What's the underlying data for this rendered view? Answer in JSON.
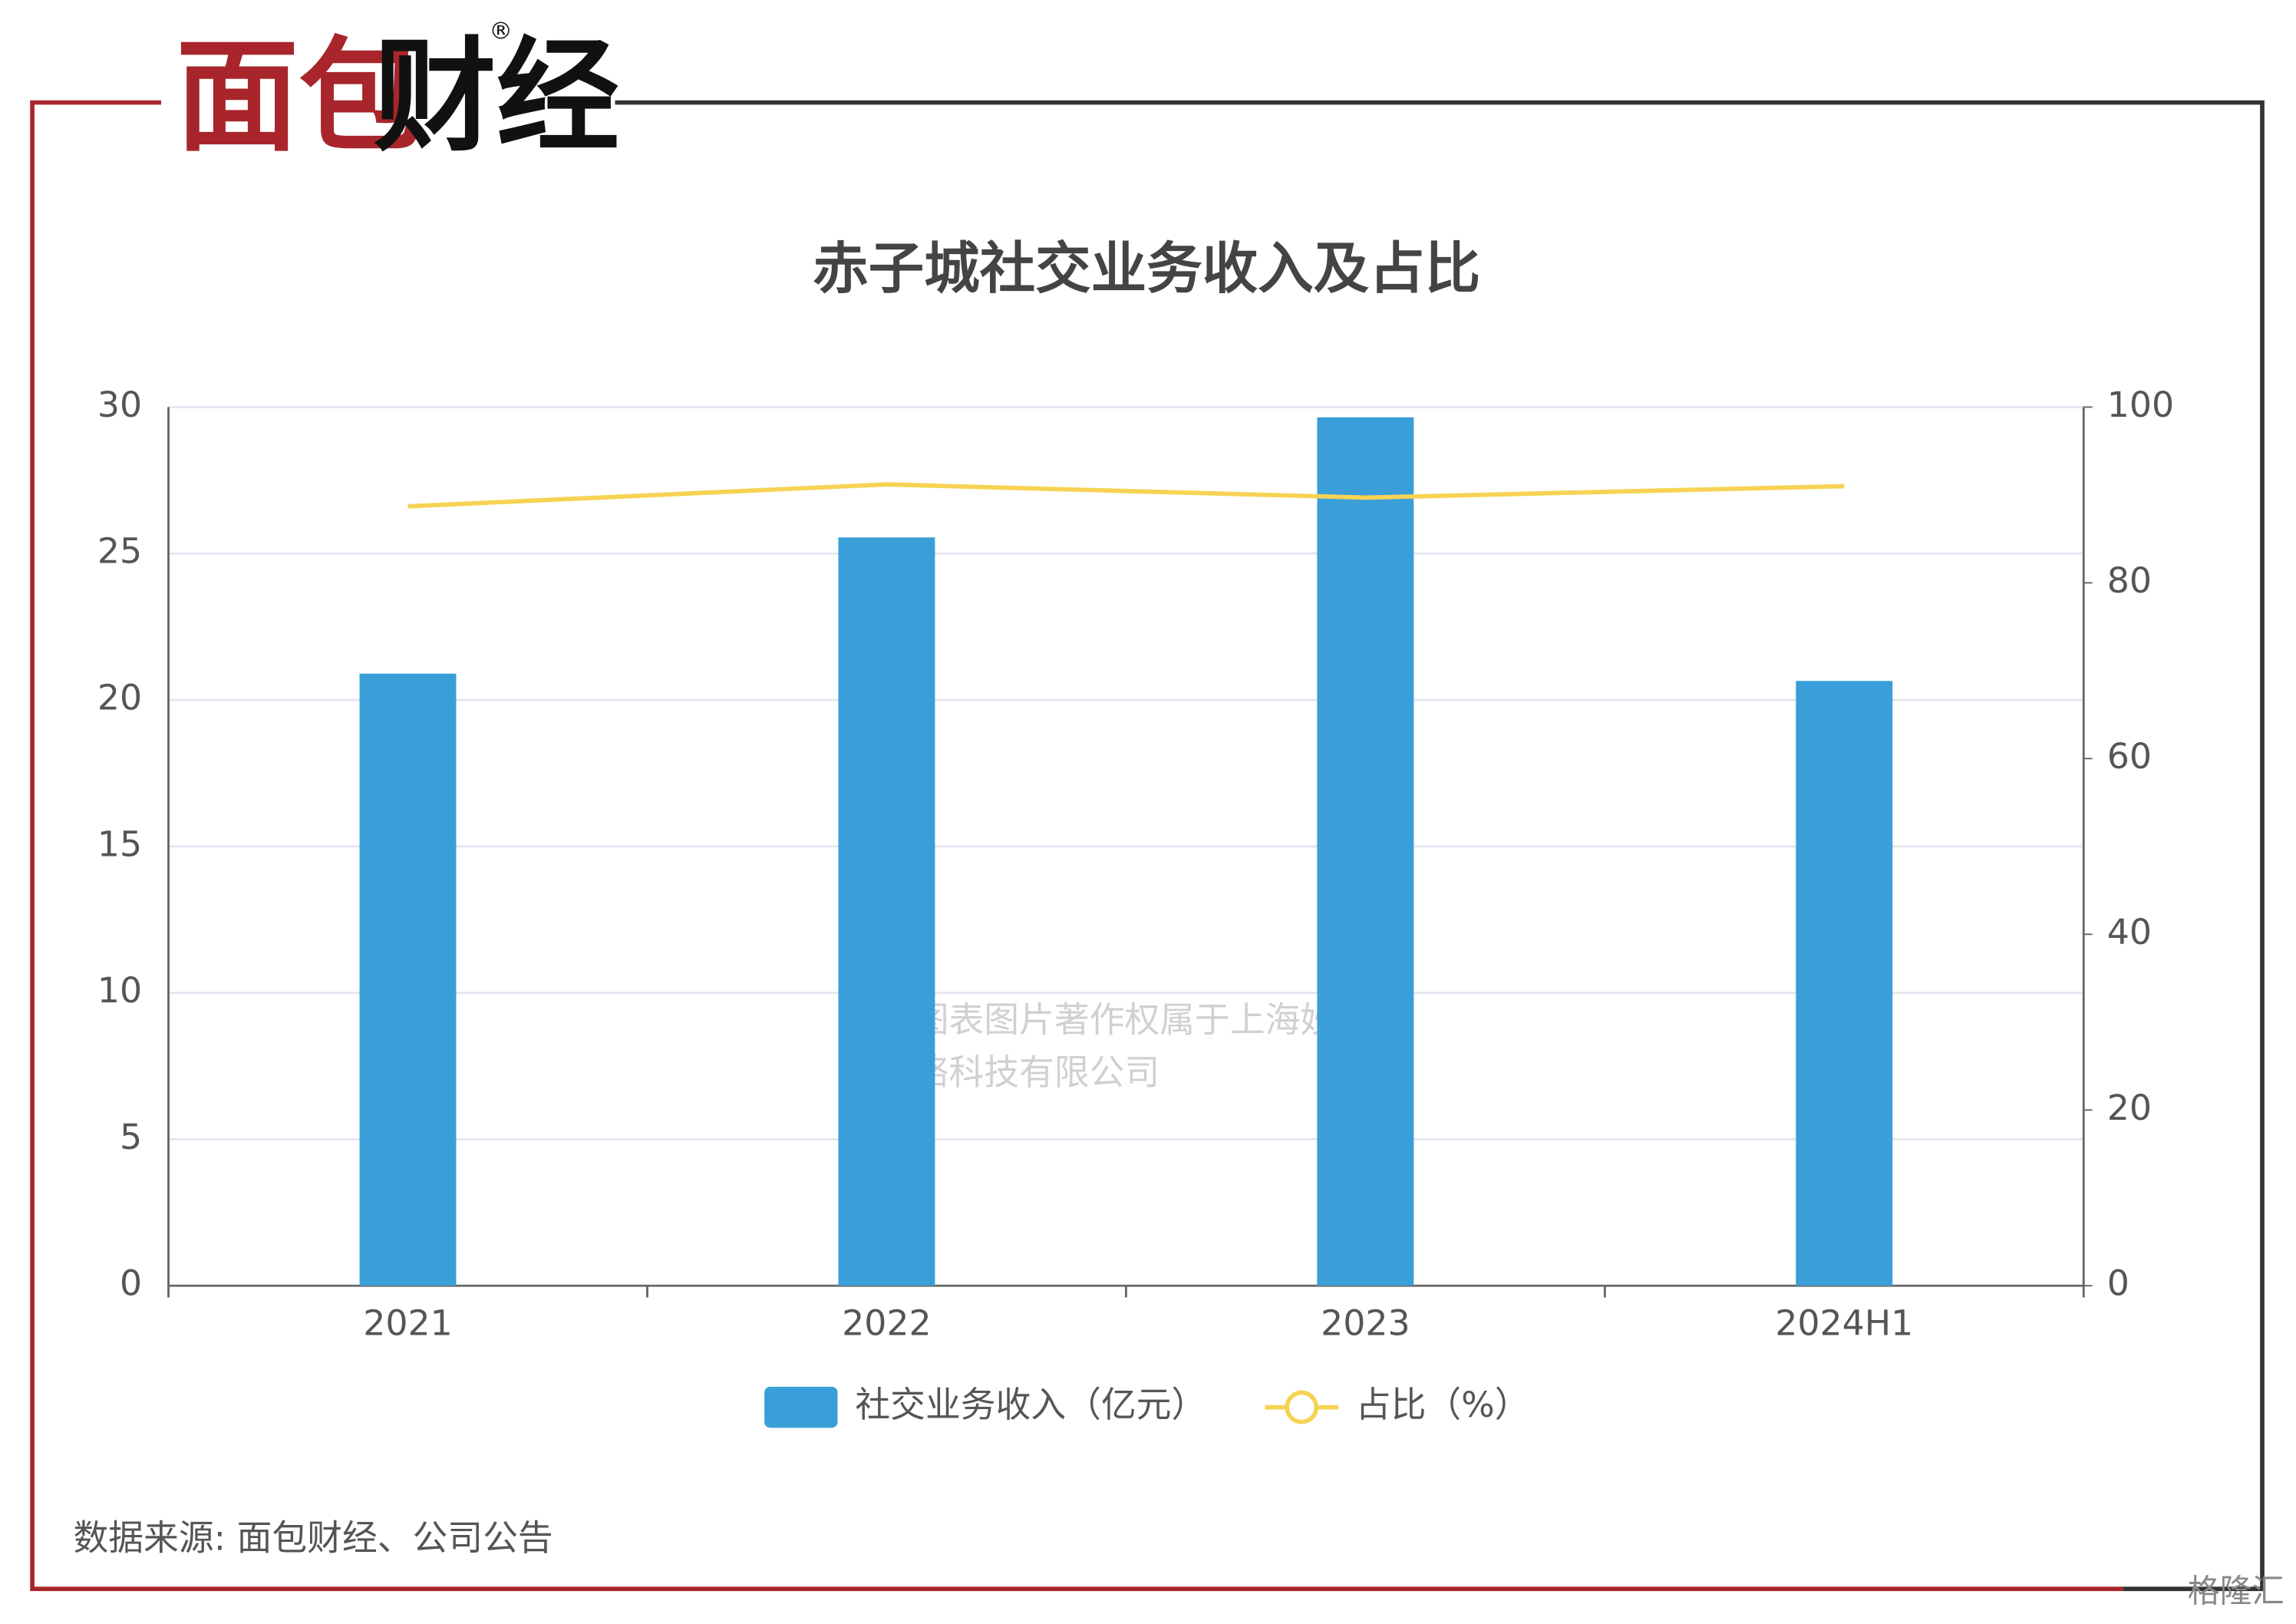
{
  "logo": [
    "面包",
    "财经",
    "®"
  ],
  "watermark": [
    "本图表图片著作权属于上海妙探",
    "网络科技有限公司"
  ],
  "corner_mark": "格隆汇",
  "chart_data": {
    "type": "bar_line",
    "title": "赤子城社交业务收入及占比",
    "categories": [
      "2021",
      "2022",
      "2023",
      "2024H1"
    ],
    "series": [
      {
        "name": "社交业务收入（亿元）",
        "type": "bar",
        "color": "#3a9fd8",
        "values": [
          20.9,
          25.55,
          29.65,
          20.65
        ]
      },
      {
        "name": "占比（%）",
        "type": "line",
        "axis": "y2",
        "color": "#f7d354",
        "values": [
          88.7,
          91.2,
          89.7,
          91.0
        ]
      }
    ],
    "ylim": [
      0,
      30
    ],
    "yticks": [
      0,
      5,
      10,
      15,
      20,
      25,
      30
    ],
    "y2lim": [
      0,
      100
    ],
    "y2ticks": [
      0,
      20,
      40,
      60,
      80,
      100
    ],
    "grid": true,
    "source": "数据来源: 面包财经、公司公告"
  }
}
